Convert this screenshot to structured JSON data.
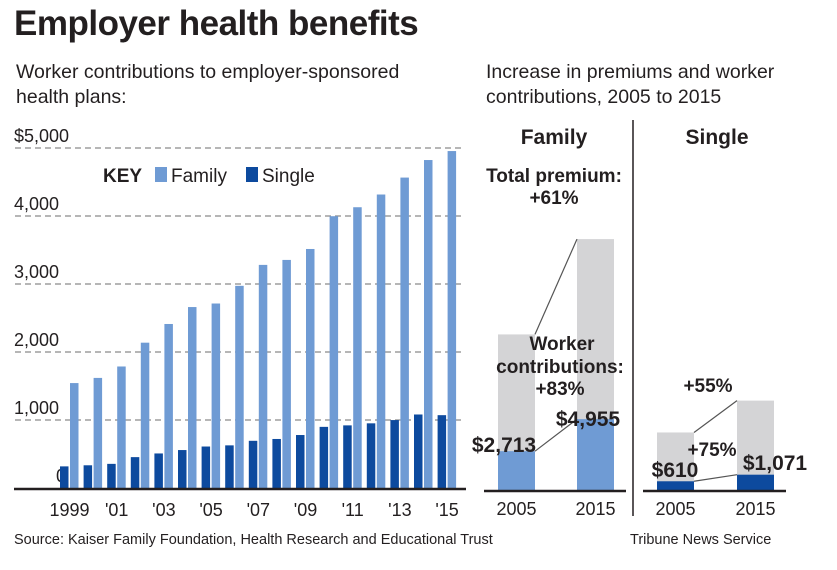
{
  "title": "Employer health benefits",
  "subtitle_left": [
    "Worker contributions to employer-sponsored",
    "health plans:"
  ],
  "subtitle_right": [
    "Increase in premiums and worker",
    "contributions, 2005 to 2015"
  ],
  "source": "Source: Kaiser Family Foundation, Health Research and Educational Trust",
  "credit": "Tribune News Service",
  "colors": {
    "family": "#6f9bd4",
    "single": "#0d4a9e",
    "premium": "#d4d4d6",
    "text": "#231f20"
  },
  "chart_data": [
    {
      "type": "bar",
      "legend": {
        "key_label": "KEY",
        "placement": "top-left",
        "entries": [
          "Family",
          "Single"
        ]
      },
      "categories": [
        "1999",
        "2000",
        "2001",
        "2002",
        "2003",
        "2004",
        "2005",
        "2006",
        "2007",
        "2008",
        "2009",
        "2010",
        "2011",
        "2012",
        "2013",
        "2014",
        "2015"
      ],
      "x_tick_labels": [
        "1999",
        "'01",
        "'03",
        "'05",
        "'07",
        "'09",
        "'11",
        "'13",
        "'15"
      ],
      "y_tick_labels": [
        "0",
        "1,000",
        "2,000",
        "3,000",
        "4,000",
        "$5,000"
      ],
      "ylim": [
        0,
        5000
      ],
      "grid": true,
      "series": [
        {
          "name": "Family",
          "values": [
            1543,
            1619,
            1787,
            2137,
            2412,
            2661,
            2713,
            2973,
            3281,
            3354,
            3515,
            3997,
            4129,
            4316,
            4565,
            4823,
            4955
          ]
        },
        {
          "name": "Single",
          "values": [
            318,
            334,
            355,
            454,
            508,
            558,
            610,
            627,
            694,
            721,
            779,
            899,
            921,
            951,
            999,
            1081,
            1071
          ]
        }
      ]
    },
    {
      "type": "bar",
      "panels": [
        {
          "name": "Family",
          "categories": [
            "2005",
            "2015"
          ],
          "total_premium": [
            10880,
            17545
          ],
          "worker_contribution": [
            2713,
            4955
          ],
          "value_labels": [
            "$2,713",
            "$4,955"
          ],
          "premium_label": [
            "Total premium:",
            "+61%"
          ],
          "contribution_label": [
            "Worker",
            "contributions:",
            "+83%"
          ]
        },
        {
          "name": "Single",
          "categories": [
            "2005",
            "2015"
          ],
          "total_premium": [
            4024,
            6251
          ],
          "worker_contribution": [
            610,
            1071
          ],
          "value_labels": [
            "$610",
            "$1,071"
          ],
          "premium_label": "+55%",
          "contribution_label": "+75%"
        }
      ]
    }
  ]
}
